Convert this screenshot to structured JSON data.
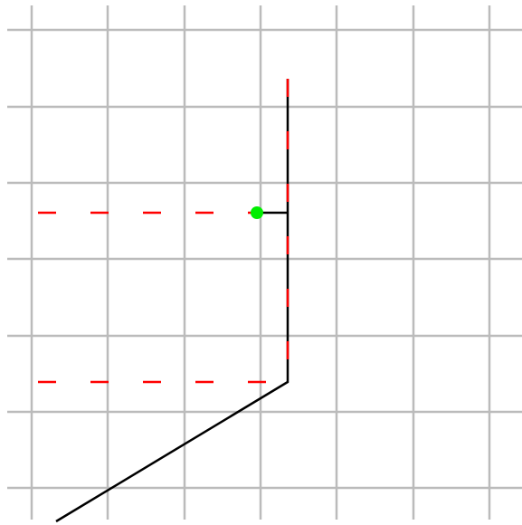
{
  "colors": {
    "background": "#ffffff",
    "grid": "#bbbbbb",
    "path": "#000000",
    "dashed_guides": "#ff0000",
    "marker": "#00ee00"
  },
  "diagram": {
    "grid": true,
    "elements": [
      {
        "name": "black-path",
        "kind": "solid-polyline"
      },
      {
        "name": "black-stub",
        "kind": "solid-segment"
      },
      {
        "name": "red-dashed-vertical",
        "kind": "dashed-segment"
      },
      {
        "name": "red-dashed-horizontal-upper",
        "kind": "dashed-segment"
      },
      {
        "name": "red-dashed-horizontal-lower",
        "kind": "dashed-segment"
      },
      {
        "name": "green-dot",
        "kind": "marker"
      }
    ]
  }
}
